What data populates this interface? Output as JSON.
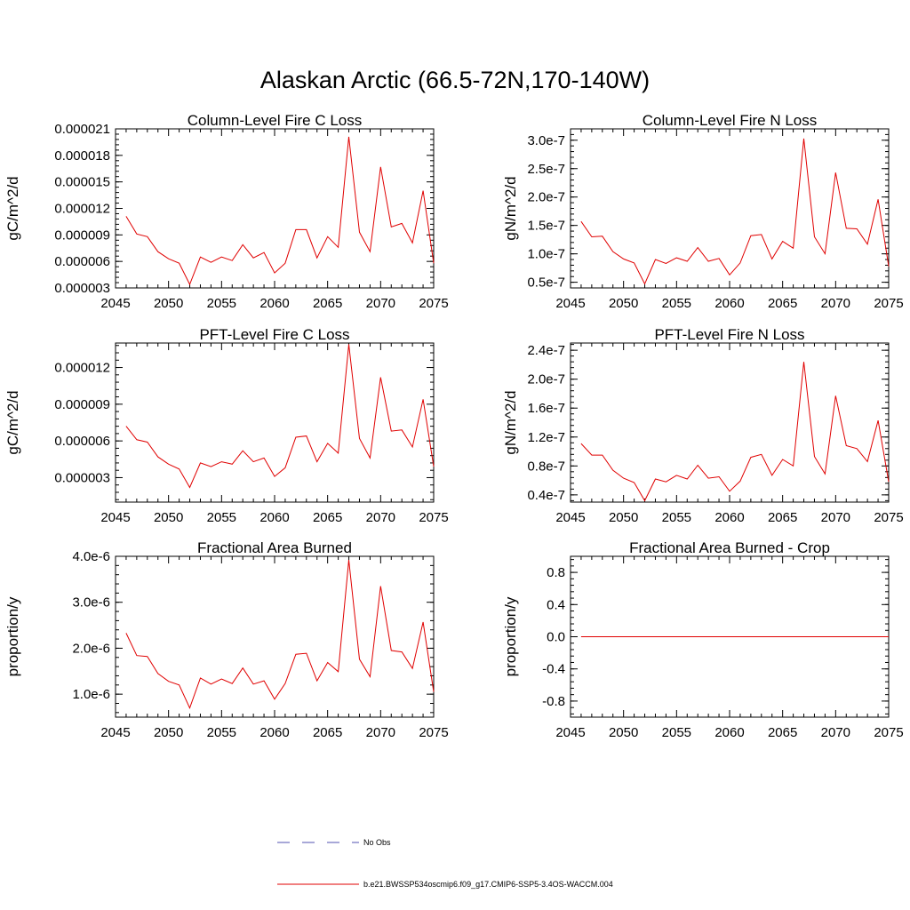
{
  "figure_title": "Alaskan Arctic (66.5-72N,170-140W)",
  "legend": [
    {
      "label": "No Obs",
      "color": "#5050b0",
      "style": "dashed"
    },
    {
      "label": "b.e21.BWSSP534oscmip6.f09_g17.CMIP6-SSP5-3.4OS-WACCM.004",
      "color": "#e00000",
      "style": "solid"
    }
  ],
  "chart_data": [
    {
      "type": "line",
      "title": "Column-Level Fire C Loss",
      "ylabel": "gC/m^2/d",
      "xlim": [
        2045,
        2075
      ],
      "ylim": [
        3e-06,
        2.1e-05
      ],
      "xticks": [
        "2045",
        "2050",
        "2055",
        "2060",
        "2065",
        "2070",
        "2075"
      ],
      "yticks": [
        {
          "v": 3e-06,
          "label": "0.000003"
        },
        {
          "v": 6e-06,
          "label": "0.000006"
        },
        {
          "v": 9e-06,
          "label": "0.000009"
        },
        {
          "v": 1.2e-05,
          "label": "0.000012"
        },
        {
          "v": 1.5e-05,
          "label": "0.000015"
        },
        {
          "v": 1.8e-05,
          "label": "0.000018"
        },
        {
          "v": 2.1e-05,
          "label": "0.000021"
        }
      ],
      "series": [
        {
          "name": "b.e21.BWSSP534oscmip6.f09_g17.CMIP6-SSP5-3.4OS-WACCM.004",
          "color": "#e00000",
          "x": [
            2046,
            2047,
            2048,
            2049,
            2050,
            2051,
            2052,
            2053,
            2054,
            2055,
            2056,
            2057,
            2058,
            2059,
            2060,
            2061,
            2062,
            2063,
            2064,
            2065,
            2066,
            2067,
            2068,
            2069,
            2070,
            2071,
            2072,
            2073,
            2074,
            2075
          ],
          "values": [
            1.11e-05,
            9.1e-06,
            8.8e-06,
            7.1e-06,
            6.3e-06,
            5.8e-06,
            3.4e-06,
            6.5e-06,
            5.9e-06,
            6.5e-06,
            6.1e-06,
            7.9e-06,
            6.4e-06,
            7e-06,
            4.7e-06,
            5.8e-06,
            9.6e-06,
            9.6e-06,
            6.4e-06,
            8.8e-06,
            7.6e-06,
            2.01e-05,
            9.3e-06,
            7.1e-06,
            1.67e-05,
            9.9e-06,
            1.03e-05,
            8.1e-06,
            1.4e-05,
            5.8e-06
          ]
        }
      ]
    },
    {
      "type": "line",
      "title": "Column-Level Fire N Loss",
      "ylabel": "gN/m^2/d",
      "xlim": [
        2045,
        2075
      ],
      "ylim": [
        4e-08,
        3.2e-07
      ],
      "xticks": [
        "2045",
        "2050",
        "2055",
        "2060",
        "2065",
        "2070",
        "2075"
      ],
      "yticks": [
        {
          "v": 5e-08,
          "label": "0.5e-7"
        },
        {
          "v": 1e-07,
          "label": "1.0e-7"
        },
        {
          "v": 1.5e-07,
          "label": "1.5e-7"
        },
        {
          "v": 2e-07,
          "label": "2.0e-7"
        },
        {
          "v": 2.5e-07,
          "label": "2.5e-7"
        },
        {
          "v": 3e-07,
          "label": "3.0e-7"
        }
      ],
      "series": [
        {
          "name": "b.e21.BWSSP534oscmip6.f09_g17.CMIP6-SSP5-3.4OS-WACCM.004",
          "color": "#e00000",
          "x": [
            2046,
            2047,
            2048,
            2049,
            2050,
            2051,
            2052,
            2053,
            2054,
            2055,
            2056,
            2057,
            2058,
            2059,
            2060,
            2061,
            2062,
            2063,
            2064,
            2065,
            2066,
            2067,
            2068,
            2069,
            2070,
            2071,
            2072,
            2073,
            2074,
            2075
          ],
          "values": [
            1.57e-07,
            1.3e-07,
            1.31e-07,
            1.04e-07,
            9.1e-08,
            8.4e-08,
            4.7e-08,
            9e-08,
            8.3e-08,
            9.3e-08,
            8.7e-08,
            1.11e-07,
            8.7e-08,
            9.2e-08,
            6.3e-08,
            8.4e-08,
            1.32e-07,
            1.34e-07,
            9.1e-08,
            1.22e-07,
            1.1e-07,
            3.03e-07,
            1.3e-07,
            1e-07,
            2.43e-07,
            1.45e-07,
            1.44e-07,
            1.17e-07,
            1.96e-07,
            7.8e-08
          ]
        }
      ]
    },
    {
      "type": "line",
      "title": "PFT-Level Fire C Loss",
      "ylabel": "gC/m^2/d",
      "xlim": [
        2045,
        2075
      ],
      "ylim": [
        1e-06,
        1.4e-05
      ],
      "xticks": [
        "2045",
        "2050",
        "2055",
        "2060",
        "2065",
        "2070",
        "2075"
      ],
      "yticks": [
        {
          "v": 3e-06,
          "label": "0.000003"
        },
        {
          "v": 6e-06,
          "label": "0.000006"
        },
        {
          "v": 9e-06,
          "label": "0.000009"
        },
        {
          "v": 1.2e-05,
          "label": "0.000012"
        }
      ],
      "series": [
        {
          "name": "b.e21.BWSSP534oscmip6.f09_g17.CMIP6-SSP5-3.4OS-WACCM.004",
          "color": "#e00000",
          "x": [
            2046,
            2047,
            2048,
            2049,
            2050,
            2051,
            2052,
            2053,
            2054,
            2055,
            2056,
            2057,
            2058,
            2059,
            2060,
            2061,
            2062,
            2063,
            2064,
            2065,
            2066,
            2067,
            2068,
            2069,
            2070,
            2071,
            2072,
            2073,
            2074,
            2075
          ],
          "values": [
            7.2e-06,
            6.1e-06,
            5.9e-06,
            4.7e-06,
            4.1e-06,
            3.7e-06,
            2.2e-06,
            4.2e-06,
            3.9e-06,
            4.3e-06,
            4.1e-06,
            5.2e-06,
            4.3e-06,
            4.6e-06,
            3.1e-06,
            3.8e-06,
            6.3e-06,
            6.4e-06,
            4.3e-06,
            5.8e-06,
            5e-06,
            1.39e-05,
            6.2e-06,
            4.6e-06,
            1.12e-05,
            6.8e-06,
            6.9e-06,
            5.5e-06,
            9.4e-06,
            3.9e-06
          ]
        }
      ]
    },
    {
      "type": "line",
      "title": "PFT-Level Fire N Loss",
      "ylabel": "gN/m^2/d",
      "xlim": [
        2045,
        2075
      ],
      "ylim": [
        3e-08,
        2.5e-07
      ],
      "xticks": [
        "2045",
        "2050",
        "2055",
        "2060",
        "2065",
        "2070",
        "2075"
      ],
      "yticks": [
        {
          "v": 4e-08,
          "label": "0.4e-7"
        },
        {
          "v": 8e-08,
          "label": "0.8e-7"
        },
        {
          "v": 1.2e-07,
          "label": "1.2e-7"
        },
        {
          "v": 1.6e-07,
          "label": "1.6e-7"
        },
        {
          "v": 2e-07,
          "label": "2.0e-7"
        },
        {
          "v": 2.4e-07,
          "label": "2.4e-7"
        }
      ],
      "series": [
        {
          "name": "b.e21.BWSSP534oscmip6.f09_g17.CMIP6-SSP5-3.4OS-WACCM.004",
          "color": "#e00000",
          "x": [
            2046,
            2047,
            2048,
            2049,
            2050,
            2051,
            2052,
            2053,
            2054,
            2055,
            2056,
            2057,
            2058,
            2059,
            2060,
            2061,
            2062,
            2063,
            2064,
            2065,
            2066,
            2067,
            2068,
            2069,
            2070,
            2071,
            2072,
            2073,
            2074,
            2075
          ],
          "values": [
            1.11e-07,
            9.5e-08,
            9.5e-08,
            7.4e-08,
            6.3e-08,
            5.7e-08,
            3.2e-08,
            6.2e-08,
            5.8e-08,
            6.7e-08,
            6.2e-08,
            8.1e-08,
            6.3e-08,
            6.5e-08,
            4.5e-08,
            5.9e-08,
            9.2e-08,
            9.6e-08,
            6.7e-08,
            8.9e-08,
            8e-08,
            2.24e-07,
            9.3e-08,
            6.9e-08,
            1.77e-07,
            1.08e-07,
            1.04e-07,
            8.6e-08,
            1.43e-07,
            5.8e-08
          ]
        }
      ]
    },
    {
      "type": "line",
      "title": "Fractional Area Burned",
      "ylabel": "proportion/y",
      "xlim": [
        2045,
        2075
      ],
      "ylim": [
        5e-07,
        4e-06
      ],
      "xticks": [
        "2045",
        "2050",
        "2055",
        "2060",
        "2065",
        "2070",
        "2075"
      ],
      "yticks": [
        {
          "v": 1e-06,
          "label": "1.0e-6"
        },
        {
          "v": 2e-06,
          "label": "2.0e-6"
        },
        {
          "v": 3e-06,
          "label": "3.0e-6"
        },
        {
          "v": 4e-06,
          "label": "4.0e-6"
        }
      ],
      "series": [
        {
          "name": "b.e21.BWSSP534oscmip6.f09_g17.CMIP6-SSP5-3.4OS-WACCM.004",
          "color": "#e00000",
          "x": [
            2046,
            2047,
            2048,
            2049,
            2050,
            2051,
            2052,
            2053,
            2054,
            2055,
            2056,
            2057,
            2058,
            2059,
            2060,
            2061,
            2062,
            2063,
            2064,
            2065,
            2066,
            2067,
            2068,
            2069,
            2070,
            2071,
            2072,
            2073,
            2074,
            2075
          ],
          "values": [
            2.33e-06,
            1.84e-06,
            1.82e-06,
            1.45e-06,
            1.28e-06,
            1.2e-06,
            7e-07,
            1.35e-06,
            1.22e-06,
            1.33e-06,
            1.23e-06,
            1.57e-06,
            1.22e-06,
            1.29e-06,
            8.9e-07,
            1.23e-06,
            1.87e-06,
            1.89e-06,
            1.29e-06,
            1.69e-06,
            1.49e-06,
            3.92e-06,
            1.76e-06,
            1.38e-06,
            3.35e-06,
            1.95e-06,
            1.92e-06,
            1.56e-06,
            2.57e-06,
            1.05e-06
          ]
        }
      ]
    },
    {
      "type": "line",
      "title": "Fractional Area Burned - Crop",
      "ylabel": "proportion/y",
      "xlim": [
        2045,
        2075
      ],
      "ylim": [
        -1.0,
        1.0
      ],
      "xticks": [
        "2045",
        "2050",
        "2055",
        "2060",
        "2065",
        "2070",
        "2075"
      ],
      "yticks": [
        {
          "v": -0.8,
          "label": "-0.8"
        },
        {
          "v": -0.4,
          "label": "-0.4"
        },
        {
          "v": 0.0,
          "label": "0.0"
        },
        {
          "v": 0.4,
          "label": "0.4"
        },
        {
          "v": 0.8,
          "label": "0.8"
        }
      ],
      "series": [
        {
          "name": "b.e21.BWSSP534oscmip6.f09_g17.CMIP6-SSP5-3.4OS-WACCM.004",
          "color": "#e00000",
          "x": [
            2046,
            2047,
            2048,
            2049,
            2050,
            2051,
            2052,
            2053,
            2054,
            2055,
            2056,
            2057,
            2058,
            2059,
            2060,
            2061,
            2062,
            2063,
            2064,
            2065,
            2066,
            2067,
            2068,
            2069,
            2070,
            2071,
            2072,
            2073,
            2074,
            2075
          ],
          "values": [
            0,
            0,
            0,
            0,
            0,
            0,
            0,
            0,
            0,
            0,
            0,
            0,
            0,
            0,
            0,
            0,
            0,
            0,
            0,
            0,
            0,
            0,
            0,
            0,
            0,
            0,
            0,
            0,
            0,
            0
          ]
        }
      ]
    }
  ]
}
